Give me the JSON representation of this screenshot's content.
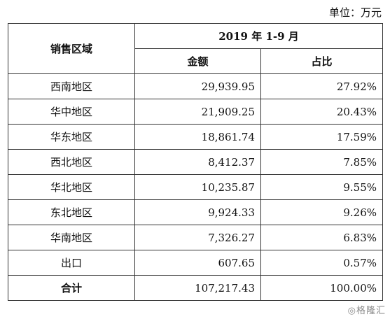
{
  "unit_label": "单位：万元",
  "header": {
    "region": "销售区域",
    "period": "2019 年 1-9 月",
    "amount": "金额",
    "share": "占比"
  },
  "rows": [
    {
      "region": "西南地区",
      "amount": "29,939.95",
      "share": "27.92%"
    },
    {
      "region": "华中地区",
      "amount": "21,909.25",
      "share": "20.43%"
    },
    {
      "region": "华东地区",
      "amount": "18,861.74",
      "share": "17.59%"
    },
    {
      "region": "西北地区",
      "amount": "8,412.37",
      "share": "7.85%"
    },
    {
      "region": "华北地区",
      "amount": "10,235.87",
      "share": "9.55%"
    },
    {
      "region": "东北地区",
      "amount": "9,924.33",
      "share": "9.26%"
    },
    {
      "region": "华南地区",
      "amount": "7,326.27",
      "share": "6.83%"
    },
    {
      "region": "出口",
      "amount": "607.65",
      "share": "0.57%"
    }
  ],
  "total": {
    "region": "合计",
    "amount": "107,217.43",
    "share": "100.00%"
  },
  "watermark": "◎格隆汇"
}
